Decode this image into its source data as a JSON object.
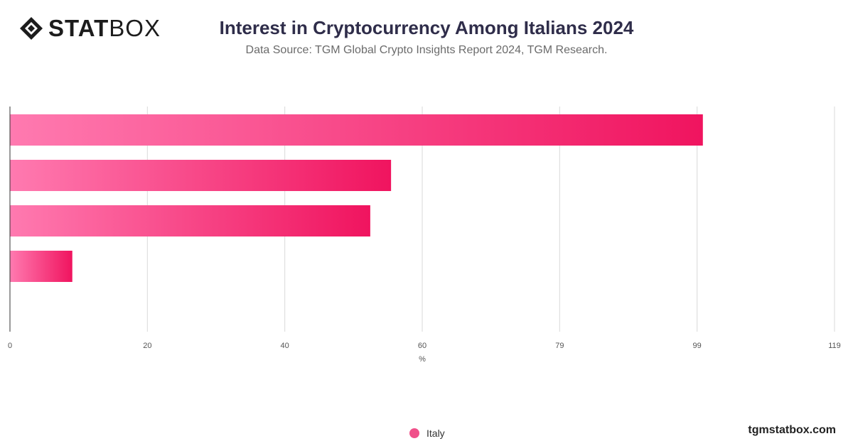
{
  "brand": {
    "logo_text_bold": "STAT",
    "logo_text_light": "BOX",
    "site": "tgmstatbox.com"
  },
  "colors": {
    "bar_start": "#ff7ab0",
    "bar_end": "#f0145f",
    "grid": "#d9d9d9",
    "axis": "#333333",
    "legend": "#f0508a"
  },
  "chart_data": {
    "type": "bar",
    "orientation": "horizontal",
    "title": "Interest in Cryptocurrency Among Italians 2024",
    "subtitle": "Data Source: TGM Global Crypto Insights Report 2024, TGM Research.",
    "xlabel": "%",
    "xlim": [
      0,
      119
    ],
    "xticks": [
      "0",
      "20",
      "40",
      "60",
      "79",
      "99",
      "119"
    ],
    "categories": [
      "",
      "",
      "",
      ""
    ],
    "series": [
      {
        "name": "Italy",
        "values": [
          100,
          55,
          52,
          9
        ]
      }
    ],
    "grid": true,
    "legend_position": "bottom"
  }
}
